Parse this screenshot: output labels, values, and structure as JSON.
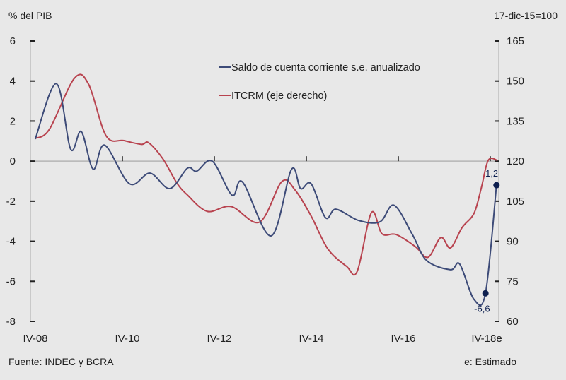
{
  "chart_data": {
    "type": "line",
    "left_unit_label": "% del PIB",
    "right_unit_label": "17-dic-15=100",
    "left_ylim": [
      -8,
      6
    ],
    "left_yticks": [
      "6",
      "4",
      "2",
      "0",
      "-2",
      "-4",
      "-6",
      "-8"
    ],
    "right_ylim": [
      60,
      165
    ],
    "right_yticks": [
      "165",
      "150",
      "135",
      "120",
      "105",
      "90",
      "75",
      "60"
    ],
    "xlim": [
      2008.875,
      2019.05
    ],
    "xticks": [
      {
        "label": "IV-08",
        "x": 2008.875
      },
      {
        "label": "IV-10",
        "x": 2010.875
      },
      {
        "label": "IV-12",
        "x": 2012.875
      },
      {
        "label": "IV-14",
        "x": 2014.875
      },
      {
        "label": "IV-16",
        "x": 2016.875
      },
      {
        "label": "IV-18e",
        "x": 2018.875
      }
    ],
    "grid": "zero line only",
    "legend_placement": "top-center",
    "series": [
      {
        "name": "Saldo de cuenta corriente s.e. anualizado",
        "axis": "left",
        "color": "#3d4b78",
        "x": [
          2008.98,
          2009.44,
          2009.75,
          2009.98,
          2010.24,
          2010.49,
          2011.03,
          2011.475,
          2011.905,
          2012.29,
          2012.49,
          2012.83,
          2013.26,
          2013.49,
          2014.11,
          2014.55,
          2014.75,
          2014.98,
          2015.29,
          2015.52,
          2016.01,
          2016.475,
          2016.78,
          2017.18,
          2017.49,
          2018.01,
          2018.21,
          2018.52,
          2018.77,
          2019.01
        ],
        "y": [
          1.1,
          3.87,
          0.6,
          1.48,
          -0.4,
          0.8,
          -1.13,
          -0.6,
          -1.37,
          -0.35,
          -0.5,
          0,
          -1.7,
          -1.05,
          -3.73,
          -0.42,
          -1.37,
          -1.13,
          -2.82,
          -2.4,
          -2.96,
          -3.03,
          -2.2,
          -3.66,
          -4.96,
          -5.42,
          -5.14,
          -6.9,
          -6.6,
          -1.2
        ]
      },
      {
        "name": "ITCRM (eje derecho)",
        "axis": "right",
        "color": "#b8434f",
        "x": [
          2008.98,
          2009.29,
          2009.83,
          2010.14,
          2010.52,
          2010.91,
          2011.29,
          2011.445,
          2011.75,
          2012.06,
          2012.29,
          2012.72,
          2013.24,
          2013.86,
          2014.34,
          2014.63,
          2014.98,
          2015.34,
          2015.75,
          2015.98,
          2016.29,
          2016.52,
          2016.83,
          2017.245,
          2017.52,
          2017.8,
          2018.01,
          2018.26,
          2018.52,
          2018.68,
          2018.83,
          2019.03
        ],
        "y": [
          128.5,
          132,
          151,
          148.8,
          129.5,
          127.7,
          126.3,
          126.9,
          121,
          111.8,
          107.3,
          101.2,
          103,
          97.2,
          112.3,
          109.2,
          99.4,
          87.2,
          80.6,
          78.7,
          100.7,
          92.8,
          92.5,
          88,
          84,
          91.4,
          87.5,
          95.1,
          100.4,
          110,
          120.3,
          120.3
        ]
      }
    ],
    "annotations": [
      {
        "label": "-6,6",
        "x": 2018.77,
        "y": -6.6,
        "color": "#0d1f4f"
      },
      {
        "label": "-1,2",
        "x": 2019.01,
        "y": -1.2,
        "color": "#0d1f4f"
      }
    ],
    "source": "Fuente: INDEC y BCRA",
    "footnote": "e: Estimado"
  }
}
